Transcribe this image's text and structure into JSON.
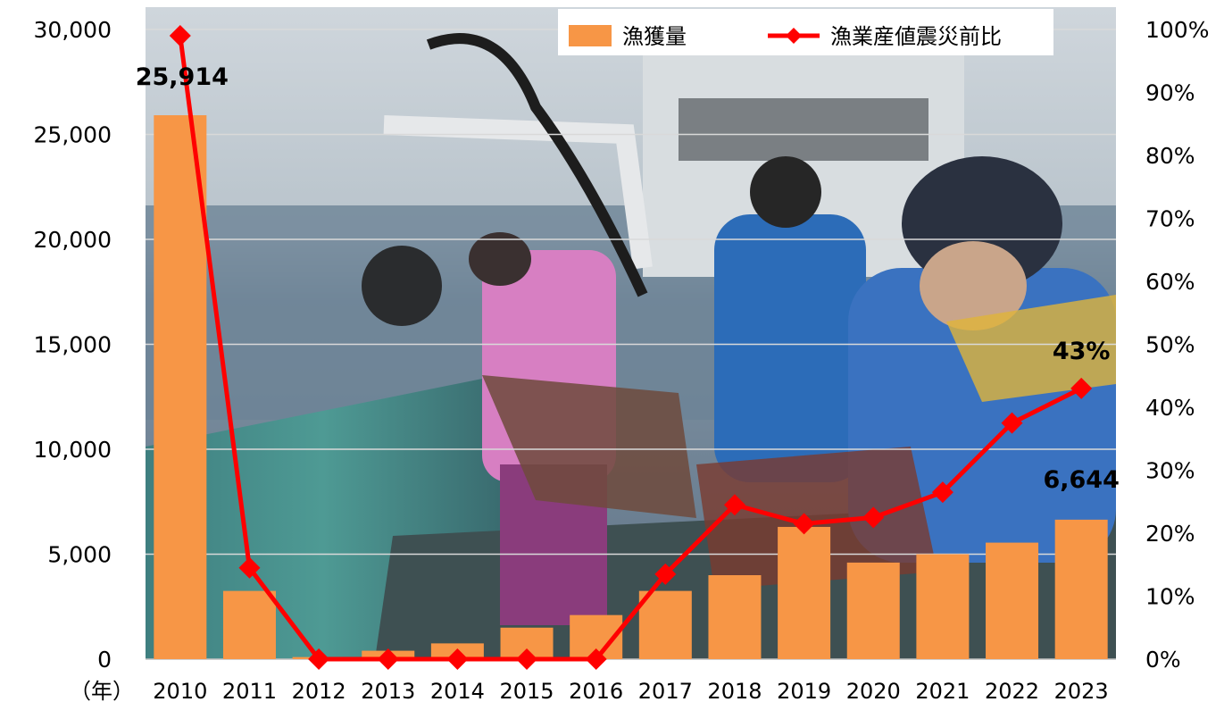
{
  "chart_data": {
    "type": "bar+line",
    "x_unit": "（年）",
    "categories": [
      "2010",
      "2011",
      "2012",
      "2013",
      "2014",
      "2015",
      "2016",
      "2017",
      "2018",
      "2019",
      "2020",
      "2021",
      "2022",
      "2023"
    ],
    "series": [
      {
        "name": "漁獲量",
        "type": "bar",
        "axis": "left",
        "color": "#F79646",
        "values": [
          25914,
          3250,
          100,
          400,
          750,
          1500,
          2100,
          3250,
          4000,
          6300,
          4600,
          5000,
          5550,
          6644
        ]
      },
      {
        "name": "漁業産値震災前比",
        "type": "line",
        "axis": "right",
        "color": "#FF0000",
        "marker": "diamond",
        "values": [
          99,
          14.5,
          0,
          0,
          0,
          0,
          0,
          13.5,
          24.5,
          21.5,
          22.5,
          26.5,
          37.5,
          43
        ]
      }
    ],
    "y_left": {
      "range": [
        0,
        30000
      ],
      "ticks": [
        0,
        5000,
        10000,
        15000,
        20000,
        25000,
        30000
      ],
      "tick_labels": [
        "0",
        "5,000",
        "10,000",
        "15,000",
        "20,000",
        "25,000",
        "30,000"
      ]
    },
    "y_right": {
      "range": [
        0,
        100
      ],
      "ticks": [
        0,
        10,
        20,
        30,
        40,
        50,
        60,
        70,
        80,
        90,
        100
      ],
      "tick_labels": [
        "0%",
        "10%",
        "20%",
        "30%",
        "40%",
        "50%",
        "60%",
        "70%",
        "80%",
        "90%",
        "100%"
      ]
    },
    "annotations": [
      {
        "text": "25,914",
        "category": "2010",
        "series": "漁獲量"
      },
      {
        "text": "6,644",
        "category": "2023",
        "series": "漁獲量"
      },
      {
        "text": "43%",
        "category": "2023",
        "series": "漁業産値震災前比"
      }
    ],
    "legend": {
      "position": "top-right",
      "items": [
        "漁獲量",
        "漁業産値震災前比"
      ]
    },
    "gridlines": true,
    "background": "photo of fishermen hauling traps on a fishing boat at sea"
  }
}
